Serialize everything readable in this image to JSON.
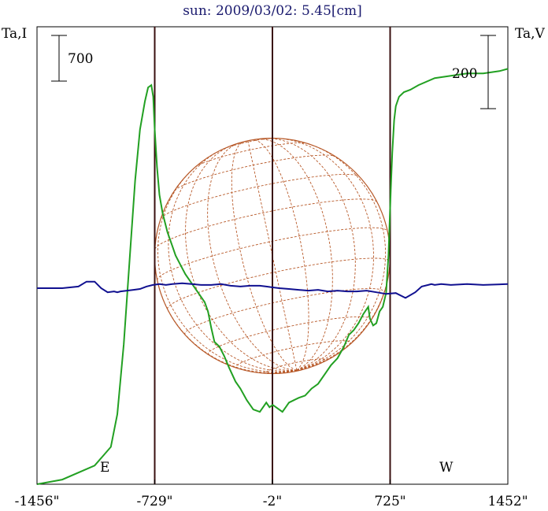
{
  "chart_data": {
    "type": "line",
    "title": "sun: 2009/03/02: 5.45[cm]",
    "ylabel_left": "Ta,I",
    "ylabel_right": "Ta,V",
    "x_ticks": [
      {
        "value": -1456,
        "label": "-1456\""
      },
      {
        "value": -729,
        "label": "-729\""
      },
      {
        "value": -2,
        "label": "-2\""
      },
      {
        "value": 725,
        "label": "725\""
      },
      {
        "value": 1452,
        "label": "1452\""
      }
    ],
    "xlim": [
      -1456,
      1452
    ],
    "ylim_left": [
      0,
      9800
    ],
    "ylim_right": [
      -1200,
      1600
    ],
    "scale_bar_left": {
      "value": 700,
      "label": "700"
    },
    "scale_bar_right": {
      "value": 200,
      "label": "200"
    },
    "limb_markers": [
      {
        "x": -729,
        "label": "E"
      },
      {
        "x": 725,
        "label": "W"
      }
    ],
    "center_line_x": -2,
    "solar_disk": {
      "center_x": -2,
      "radius_arcsec": 727,
      "grid": true
    },
    "series": [
      {
        "name": "Ta,I",
        "axis": "left",
        "color": "#22a022",
        "x": [
          -1456,
          -1300,
          -1100,
          -1000,
          -960,
          -920,
          -880,
          -850,
          -820,
          -790,
          -770,
          -750,
          -738,
          -729,
          -715,
          -700,
          -680,
          -650,
          -620,
          -600,
          -570,
          -540,
          -500,
          -460,
          -420,
          -400,
          -380,
          -360,
          -330,
          -300,
          -270,
          -230,
          -200,
          -160,
          -120,
          -80,
          -60,
          -40,
          -20,
          0,
          20,
          60,
          80,
          100,
          130,
          160,
          200,
          240,
          280,
          330,
          360,
          400,
          440,
          470,
          500,
          530,
          560,
          590,
          600,
          620,
          640,
          660,
          680,
          700,
          715,
          729,
          738,
          750,
          760,
          780,
          810,
          850,
          900,
          1000,
          1100,
          1200,
          1300,
          1400,
          1452
        ],
        "values": [
          0,
          100,
          400,
          800,
          1500,
          3000,
          5000,
          6500,
          7600,
          8200,
          8500,
          8550,
          8300,
          7600,
          6800,
          6200,
          5800,
          5400,
          5100,
          4900,
          4700,
          4500,
          4300,
          4100,
          3900,
          3700,
          3350,
          3050,
          2950,
          2750,
          2500,
          2200,
          2050,
          1800,
          1600,
          1550,
          1650,
          1750,
          1650,
          1700,
          1650,
          1550,
          1650,
          1750,
          1800,
          1850,
          1900,
          2050,
          2150,
          2400,
          2550,
          2700,
          2950,
          3200,
          3300,
          3450,
          3650,
          3800,
          3550,
          3400,
          3450,
          3700,
          3800,
          4100,
          4900,
          6300,
          7100,
          7800,
          8100,
          8300,
          8400,
          8450,
          8550,
          8700,
          8750,
          8800,
          8800,
          8850,
          8900
        ]
      },
      {
        "name": "Ta,V",
        "axis": "right",
        "color": "#101090",
        "x": [
          -1456,
          -1300,
          -1200,
          -1150,
          -1100,
          -1060,
          -1020,
          -980,
          -960,
          -940,
          -900,
          -860,
          -820,
          -780,
          -740,
          -700,
          -660,
          -620,
          -560,
          -500,
          -440,
          -380,
          -320,
          -260,
          -200,
          -140,
          -80,
          -40,
          0,
          40,
          100,
          160,
          220,
          280,
          340,
          400,
          460,
          520,
          580,
          640,
          700,
          760,
          820,
          880,
          920,
          960,
          980,
          1000,
          1040,
          1100,
          1200,
          1300,
          1452
        ],
        "values": [
          0,
          0,
          10,
          40,
          40,
          0,
          -25,
          -20,
          -25,
          -20,
          -15,
          -10,
          -5,
          10,
          20,
          25,
          20,
          25,
          30,
          25,
          20,
          20,
          25,
          15,
          10,
          15,
          15,
          10,
          5,
          0,
          -5,
          -10,
          -15,
          -10,
          -20,
          -15,
          -20,
          -20,
          -15,
          -25,
          -35,
          -30,
          -60,
          -25,
          10,
          20,
          25,
          20,
          25,
          20,
          25,
          20,
          25
        ]
      }
    ]
  }
}
